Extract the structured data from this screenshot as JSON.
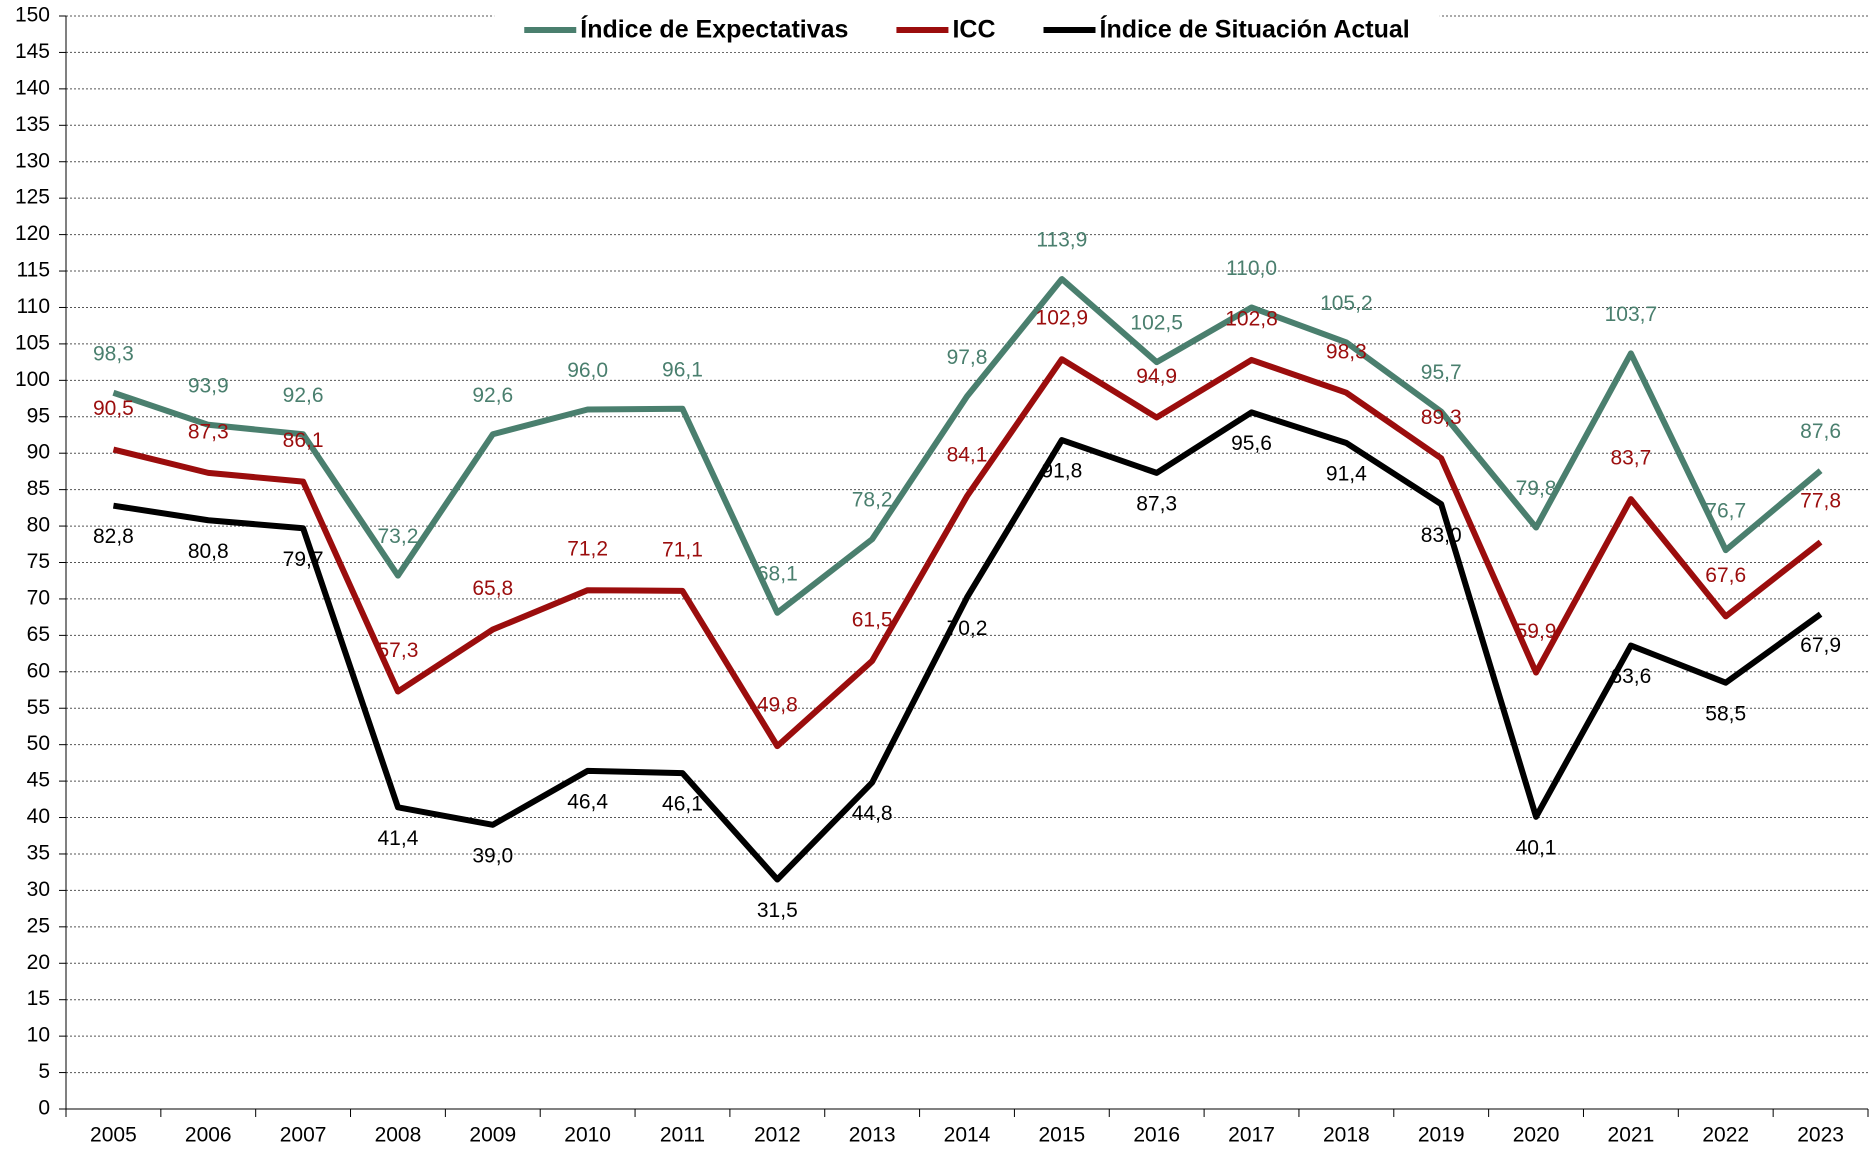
{
  "chart_data": {
    "type": "line",
    "categories": [
      "2005",
      "2006",
      "2007",
      "2008",
      "2009",
      "2010",
      "2011",
      "2012",
      "2013",
      "2014",
      "2015",
      "2016",
      "2017",
      "2018",
      "2019",
      "2020",
      "2021",
      "2022",
      "2023"
    ],
    "series": [
      {
        "name": "Índice de Expectativas",
        "color": "#4a7f6e",
        "values": [
          98.3,
          93.9,
          92.6,
          73.2,
          92.6,
          96.0,
          96.1,
          68.1,
          78.2,
          97.8,
          113.9,
          102.5,
          110.0,
          105.2,
          95.7,
          79.8,
          103.7,
          76.7,
          87.6
        ],
        "value_labels": [
          "98,3",
          "93,9",
          "92,6",
          "73,2",
          "92,6",
          "96,0",
          "96,1",
          "68,1",
          "78,2",
          "97,8",
          "113,9",
          "102,5",
          "110,0",
          "105,2",
          "95,7",
          "79,8",
          "103,7",
          "76,7",
          "87,6"
        ]
      },
      {
        "name": "ICC",
        "color": "#9b0d0d",
        "values": [
          90.5,
          87.3,
          86.1,
          57.3,
          65.8,
          71.2,
          71.1,
          49.8,
          61.5,
          84.1,
          102.9,
          94.9,
          102.8,
          98.3,
          89.3,
          59.9,
          83.7,
          67.6,
          77.8
        ],
        "value_labels": [
          "90,5",
          "87,3",
          "86,1",
          "57,3",
          "65,8",
          "71,2",
          "71,1",
          "49,8",
          "61,5",
          "84,1",
          "102,9",
          "94,9",
          "102,8",
          "98,3",
          "89,3",
          "59,9",
          "83,7",
          "67,6",
          "77,8"
        ]
      },
      {
        "name": "Índice de Situación Actual",
        "color": "#000000",
        "values": [
          82.8,
          80.8,
          79.7,
          41.4,
          39.0,
          46.4,
          46.1,
          31.5,
          44.8,
          70.2,
          91.8,
          87.3,
          95.6,
          91.4,
          83.0,
          40.1,
          63.6,
          58.5,
          67.9
        ],
        "value_labels": [
          "82,8",
          "80,8",
          "79,7",
          "41,4",
          "39,0",
          "46,4",
          "46,1",
          "31,5",
          "44,8",
          "70,2",
          "91,8",
          "87,3",
          "95,6",
          "91,4",
          "83,0",
          "40,1",
          "63,6",
          "58,5",
          "67,9"
        ]
      }
    ],
    "ylim": [
      0,
      150
    ],
    "yticks": [
      0,
      5,
      10,
      15,
      20,
      25,
      30,
      35,
      40,
      45,
      50,
      55,
      60,
      65,
      70,
      75,
      80,
      85,
      90,
      95,
      100,
      105,
      110,
      115,
      120,
      125,
      130,
      135,
      140,
      145,
      150
    ],
    "grid": true,
    "legend": "top"
  }
}
